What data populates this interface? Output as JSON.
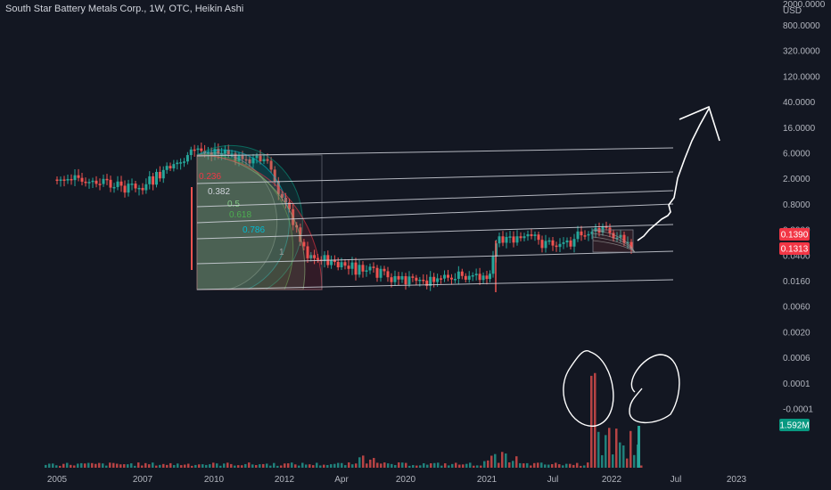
{
  "header": {
    "title": "South Star Battery Metals Corp., 1W, OTC, Heikin Ashi"
  },
  "colors": {
    "background": "#131722",
    "up": "#26a69a",
    "down": "#ef5350",
    "line": "#d1d4dc",
    "axis_text": "#b2b5be",
    "badge_red": "#f23645",
    "badge_green": "#089981"
  },
  "chart_data": {
    "type": "candlestick",
    "title": "South Star Battery Metals Corp., 1W, OTC, Heikin Ashi",
    "y_scale": "log",
    "y_unit": "USD",
    "y_ticks": [
      "2000.0000",
      "800.0000",
      "320.0000",
      "120.0000",
      "40.0000",
      "16.0000",
      "6.0000",
      "2.0000",
      "0.8000",
      "0.3000",
      "0.0400",
      "0.0160",
      "0.0060",
      "0.0020",
      "0.0006",
      "0.0001",
      "-0.0001"
    ],
    "x_ticks": [
      "2005",
      "2007",
      "2010",
      "2012",
      "Apr",
      "2020",
      "2021",
      "Jul",
      "2022",
      "Jul",
      "2023"
    ],
    "price_badges": [
      {
        "label": "0.1390",
        "color": "#f23645"
      },
      {
        "label": "0.1313",
        "color": "#f23645"
      },
      {
        "label": "1.592M",
        "color": "#089981"
      }
    ],
    "fib_levels": [
      "0.236",
      "0.382",
      "0.5",
      "0.618",
      "0.786",
      "1"
    ],
    "price_path_approx": [
      {
        "x": "2005",
        "y": 1.8
      },
      {
        "x": "2007",
        "y": 1.3
      },
      {
        "x": "2009",
        "y": 6.0
      },
      {
        "x": "2010",
        "y": 4.5
      },
      {
        "x": "2011",
        "y": 3.5
      },
      {
        "x": "2012",
        "y": 0.1
      },
      {
        "x": "Apr",
        "y": 0.06
      },
      {
        "x": "2020",
        "y": 0.035
      },
      {
        "x": "2021",
        "y": 0.04
      },
      {
        "x": "2021",
        "y": 0.2
      },
      {
        "x": "Jul",
        "y": 0.15
      },
      {
        "x": "2022",
        "y": 0.25
      },
      {
        "x": "2022",
        "y": 0.1313
      }
    ]
  }
}
